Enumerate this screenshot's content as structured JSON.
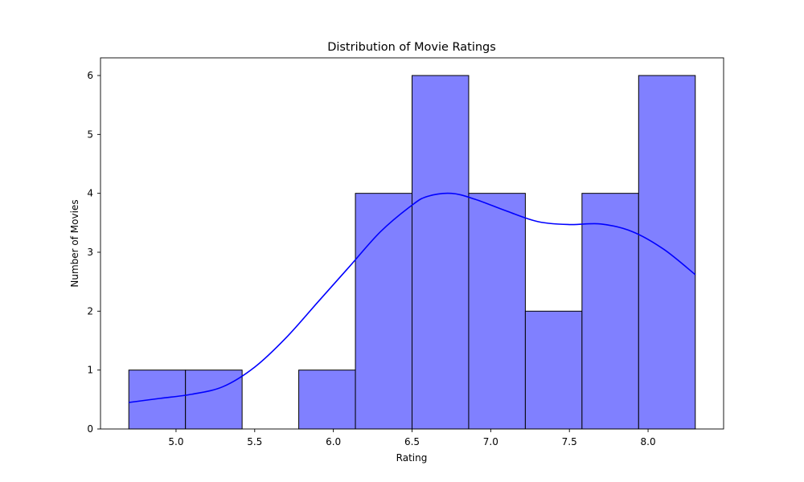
{
  "chart_data": {
    "type": "bar",
    "title": "Distribution of Movie Ratings",
    "xlabel": "Rating",
    "ylabel": "Number of Movies",
    "bins": [
      {
        "start": 4.7,
        "end": 5.06,
        "count": 1
      },
      {
        "start": 5.06,
        "end": 5.42,
        "count": 1
      },
      {
        "start": 5.42,
        "end": 5.78,
        "count": 0
      },
      {
        "start": 5.78,
        "end": 6.14,
        "count": 1
      },
      {
        "start": 6.14,
        "end": 6.5,
        "count": 4
      },
      {
        "start": 6.5,
        "end": 6.86,
        "count": 6
      },
      {
        "start": 6.86,
        "end": 7.22,
        "count": 4
      },
      {
        "start": 7.22,
        "end": 7.58,
        "count": 2
      },
      {
        "start": 7.58,
        "end": 7.94,
        "count": 4
      },
      {
        "start": 7.94,
        "end": 8.3,
        "count": 6
      }
    ],
    "kde": {
      "x": [
        4.7,
        4.9,
        5.1,
        5.3,
        5.5,
        5.7,
        5.9,
        6.1,
        6.3,
        6.5,
        6.6,
        6.75,
        6.9,
        7.1,
        7.3,
        7.5,
        7.7,
        7.9,
        8.1,
        8.3
      ],
      "y": [
        0.45,
        0.52,
        0.59,
        0.72,
        1.05,
        1.55,
        2.15,
        2.75,
        3.35,
        3.8,
        3.95,
        4.0,
        3.9,
        3.7,
        3.52,
        3.47,
        3.48,
        3.35,
        3.05,
        2.62
      ]
    },
    "xlim": [
      4.52,
      8.48
    ],
    "ylim": [
      0,
      6.3
    ],
    "xticks": [
      "5.0",
      "5.5",
      "6.0",
      "6.5",
      "7.0",
      "7.5",
      "8.0"
    ],
    "yticks": [
      "0",
      "1",
      "2",
      "3",
      "4",
      "5",
      "6"
    ],
    "grid": false,
    "bar_color": "#8080ff",
    "bar_edge_color": "#000000",
    "line_color": "#0000ff"
  }
}
